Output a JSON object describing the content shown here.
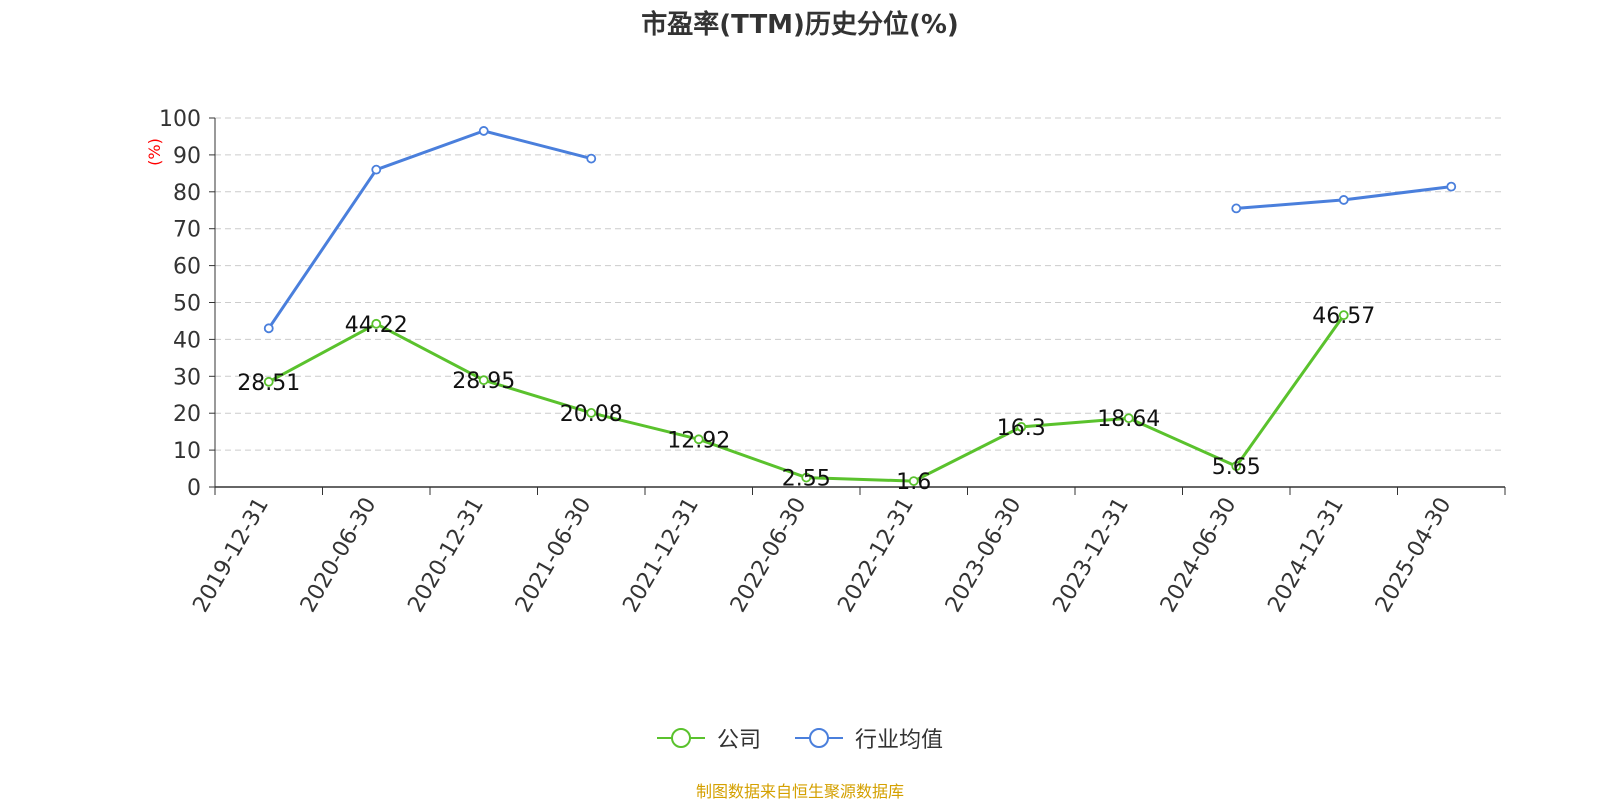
{
  "title": "市盈率(TTM)历史分位(%)",
  "source_text": "制图数据来自恒生聚源数据库",
  "colors": {
    "company": "#5ac22d",
    "industry": "#4a7fdc",
    "ylabel": "#ff0000",
    "source": "#d4a000",
    "grid": "#cccccc",
    "axis": "#333333"
  },
  "chart_data": {
    "type": "line",
    "title": "市盈率(TTM)历史分位(%)",
    "xlabel": "",
    "ylabel": "(%)",
    "ylim": [
      0,
      100
    ],
    "yticks": [
      0,
      10,
      20,
      30,
      40,
      50,
      60,
      70,
      80,
      90,
      100
    ],
    "grid": true,
    "legend_position": "bottom",
    "categories": [
      "2019-12-31",
      "2020-06-30",
      "2020-12-31",
      "2021-06-30",
      "2021-12-31",
      "2022-06-30",
      "2022-12-31",
      "2023-06-30",
      "2023-12-31",
      "2024-06-30",
      "2024-12-31",
      "2025-04-30"
    ],
    "series": [
      {
        "name": "公司",
        "color": "#5ac22d",
        "values": [
          28.51,
          44.22,
          28.95,
          20.08,
          12.92,
          2.55,
          1.6,
          16.3,
          18.64,
          5.65,
          46.57,
          null
        ],
        "labels": [
          "28.51",
          "44.22",
          "28.95",
          "20.08",
          "12.92",
          "2.55",
          "1.6",
          "16.3",
          "18.64",
          "5.65",
          "46.57",
          ""
        ]
      },
      {
        "name": "行业均值",
        "color": "#4a7fdc",
        "values": [
          43,
          86,
          96.5,
          89,
          null,
          null,
          null,
          null,
          null,
          75.5,
          77.8,
          81.4
        ]
      }
    ]
  }
}
